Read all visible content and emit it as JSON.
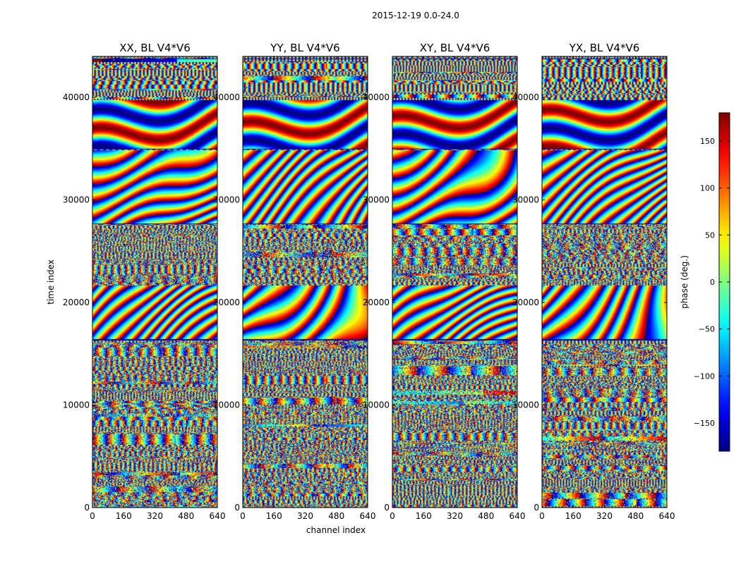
{
  "suptitle": "2015-12-19 0.0-24.0",
  "chart_data": {
    "type": "heatmap",
    "x_label": "channel index",
    "y_label": "time index",
    "x_range": [
      0,
      640
    ],
    "y_range": [
      0,
      44000
    ],
    "x_ticks": [
      0,
      160,
      320,
      480,
      640
    ],
    "y_ticks": [
      0,
      10000,
      20000,
      30000,
      40000
    ],
    "panels": [
      {
        "title": "XX, BL V4*V6",
        "pol": "XX"
      },
      {
        "title": "YY, BL V4*V6",
        "pol": "YY"
      },
      {
        "title": "XY, BL V4*V6",
        "pol": "XY"
      },
      {
        "title": "YX, BL V4*V6",
        "pol": "YX"
      }
    ],
    "colorbar": {
      "label": "phase (deg.)",
      "range": [
        -180,
        180
      ],
      "ticks": [
        150,
        100,
        50,
        0,
        -50,
        -100,
        -150
      ],
      "colormap": "jet"
    },
    "segment_breaks": [
      16400,
      27700,
      35000,
      43800
    ],
    "texture": {
      "stripe_bands": [
        [
          16400,
          21700
        ],
        [
          27700,
          32200
        ],
        [
          32200,
          34900
        ]
      ],
      "smooth_bands": [
        [
          35000,
          39800
        ]
      ],
      "noise_bands": [
        [
          0,
          16400
        ],
        [
          21700,
          27700
        ]
      ]
    }
  }
}
